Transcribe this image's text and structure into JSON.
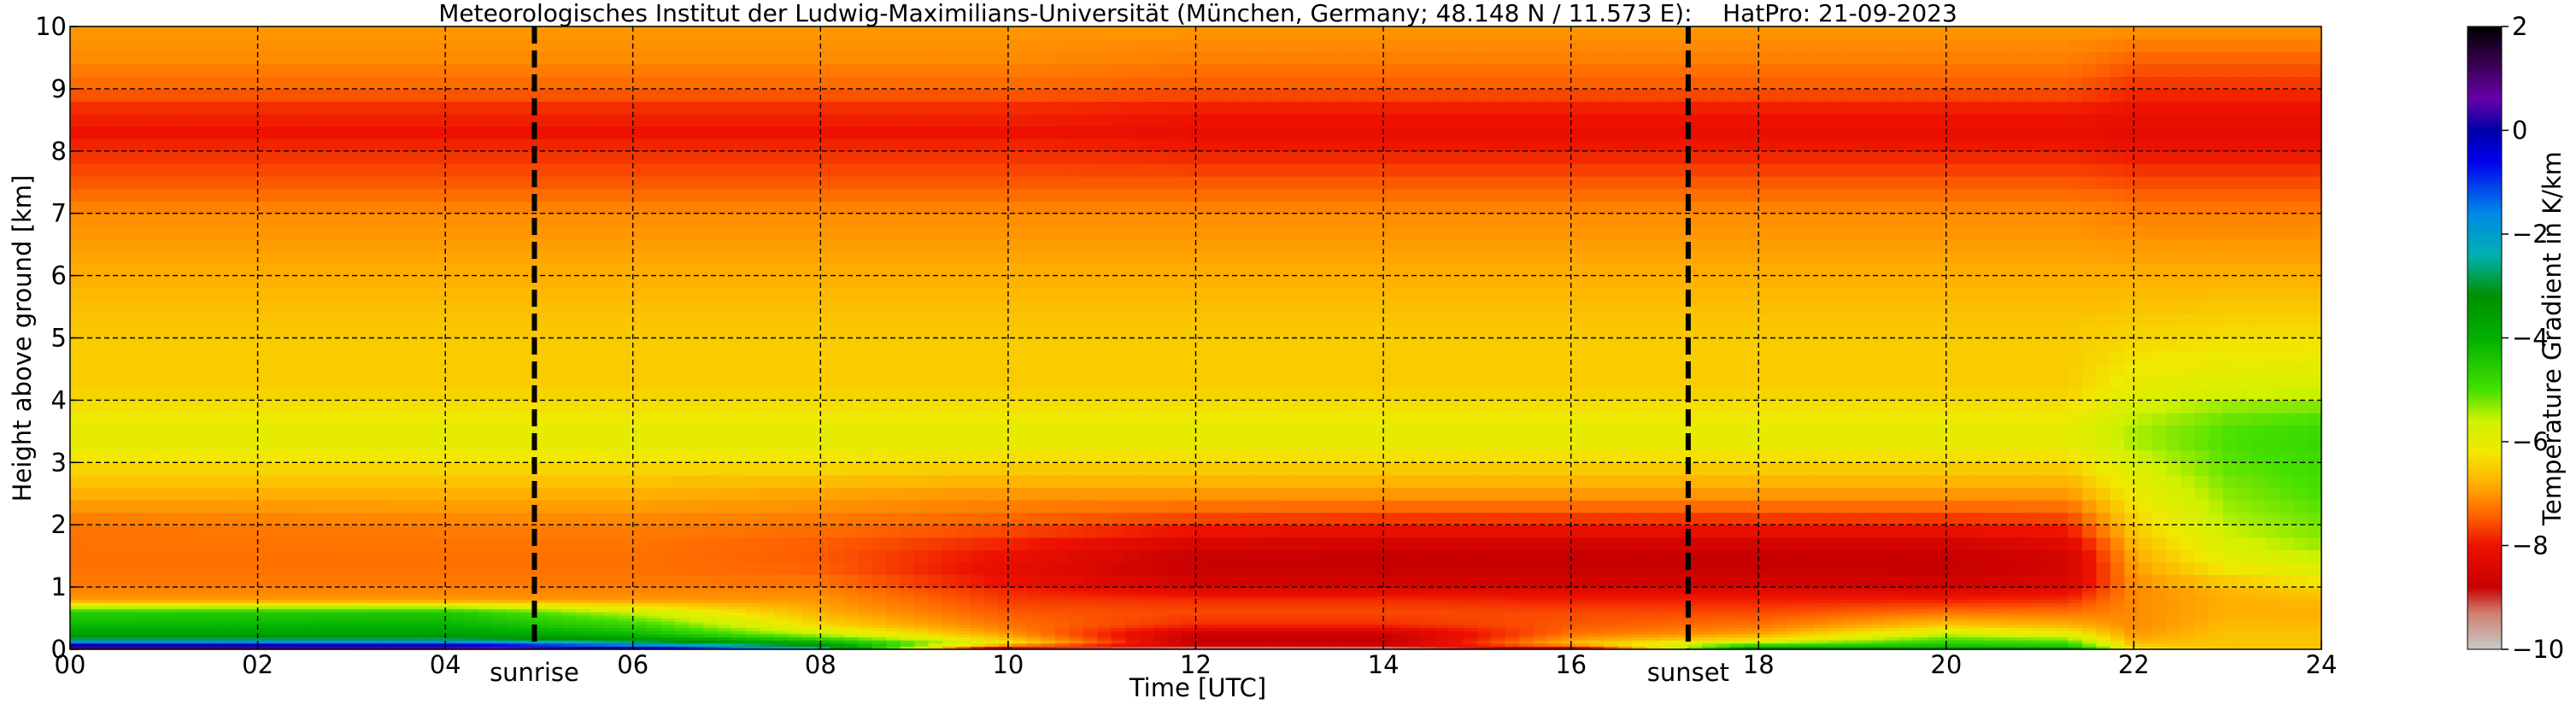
{
  "chart_data": {
    "type": "heatmap",
    "title": "Meteorologisches Institut der Ludwig-Maximilians-Universität (München, Germany; 48.148 N / 11.573 E):    HatPro: 21-09-2023",
    "xlabel": "Time [UTC]",
    "ylabel": "Height above ground [km]",
    "xlim": [
      0,
      24
    ],
    "ylim": [
      0,
      10
    ],
    "x_ticks": [
      0,
      2,
      4,
      6,
      8,
      10,
      12,
      14,
      16,
      18,
      20,
      22,
      24
    ],
    "x_tick_labels": [
      "00",
      "02",
      "04",
      "06",
      "08",
      "10",
      "12",
      "14",
      "16",
      "18",
      "20",
      "22",
      "24"
    ],
    "y_ticks": [
      0,
      1,
      2,
      3,
      4,
      5,
      6,
      7,
      8,
      9,
      10
    ],
    "y_tick_labels": [
      "0",
      "1",
      "2",
      "3",
      "4",
      "5",
      "6",
      "7",
      "8",
      "9",
      "10"
    ],
    "grid": true,
    "markers": [
      {
        "label": "sunrise",
        "x": 4.95
      },
      {
        "label": "sunset",
        "x": 17.25
      }
    ],
    "colorbar": {
      "label": "Temperature Gradient in K/km",
      "range": [
        -10,
        2
      ],
      "ticks": [
        2,
        0,
        -2,
        -4,
        -6,
        -8,
        -10
      ],
      "tick_labels": [
        "2",
        "0",
        "−2",
        "−4",
        "−6",
        "−8",
        "−10"
      ],
      "stops": [
        {
          "value": -10,
          "color": "#c8c8c8"
        },
        {
          "value": -9.3,
          "color": "#d08070"
        },
        {
          "value": -8.8,
          "color": "#c80000"
        },
        {
          "value": -8.0,
          "color": "#ee1100"
        },
        {
          "value": -7.4,
          "color": "#ff6600"
        },
        {
          "value": -6.8,
          "color": "#ffb000"
        },
        {
          "value": -6.2,
          "color": "#f2e800"
        },
        {
          "value": -5.6,
          "color": "#d0f200"
        },
        {
          "value": -5.0,
          "color": "#44e000"
        },
        {
          "value": -4.0,
          "color": "#00b000"
        },
        {
          "value": -3.2,
          "color": "#009000"
        },
        {
          "value": -2.4,
          "color": "#00b0b0"
        },
        {
          "value": -1.6,
          "color": "#0088e8"
        },
        {
          "value": -0.6,
          "color": "#0000ee"
        },
        {
          "value": 0.0,
          "color": "#0000a8"
        },
        {
          "value": 0.6,
          "color": "#6600aa"
        },
        {
          "value": 1.3,
          "color": "#380050"
        },
        {
          "value": 2.0,
          "color": "#000000"
        }
      ]
    },
    "field": {
      "profile_heights_km": [
        0,
        0.05,
        0.1,
        0.15,
        0.25,
        0.4,
        0.6,
        0.8,
        1.0,
        1.2,
        1.6,
        2.0,
        2.5,
        3.0,
        3.4,
        3.8,
        4.2,
        5.0,
        6.0,
        7.0,
        7.5,
        8.0,
        8.3,
        8.7,
        9.0,
        9.5,
        10.0
      ],
      "profiles": [
        {
          "hour": 0,
          "values": [
            1.8,
            0.5,
            -0.8,
            -2.6,
            -3.6,
            -4.2,
            -4.6,
            -7.0,
            -7.2,
            -7.3,
            -7.3,
            -7.3,
            -6.8,
            -6.3,
            -5.9,
            -6.2,
            -6.5,
            -6.5,
            -6.8,
            -7.1,
            -7.5,
            -7.8,
            -8.0,
            -7.8,
            -7.4,
            -7.1,
            -7.0
          ]
        },
        {
          "hour": 4,
          "values": [
            1.6,
            0.3,
            -0.9,
            -2.6,
            -3.6,
            -4.1,
            -4.5,
            -7.0,
            -7.2,
            -7.3,
            -7.3,
            -7.2,
            -6.8,
            -6.3,
            -5.9,
            -6.2,
            -6.5,
            -6.5,
            -6.8,
            -7.1,
            -7.5,
            -7.8,
            -8.0,
            -7.8,
            -7.4,
            -7.1,
            -7.0
          ]
        },
        {
          "hour": 6,
          "values": [
            0.5,
            -1.0,
            -2.2,
            -3.3,
            -4.2,
            -4.8,
            -5.6,
            -7.0,
            -7.2,
            -7.3,
            -7.3,
            -7.2,
            -6.8,
            -6.3,
            -5.9,
            -6.2,
            -6.5,
            -6.5,
            -6.8,
            -7.1,
            -7.5,
            -7.8,
            -8.0,
            -7.8,
            -7.4,
            -7.1,
            -7.0
          ]
        },
        {
          "hour": 8,
          "values": [
            -2.0,
            -3.0,
            -3.8,
            -4.5,
            -5.6,
            -6.4,
            -6.8,
            -7.0,
            -7.2,
            -7.4,
            -7.5,
            -7.3,
            -6.9,
            -6.3,
            -5.9,
            -6.2,
            -6.5,
            -6.5,
            -6.8,
            -7.1,
            -7.5,
            -7.8,
            -8.0,
            -7.8,
            -7.4,
            -7.1,
            -7.0
          ]
        },
        {
          "hour": 10,
          "values": [
            -9.8,
            -8.0,
            -6.0,
            -6.5,
            -7.0,
            -7.3,
            -7.5,
            -7.7,
            -7.9,
            -8.2,
            -8.0,
            -7.5,
            -7.0,
            -6.4,
            -5.9,
            -6.2,
            -6.5,
            -6.5,
            -6.8,
            -7.1,
            -7.5,
            -7.8,
            -8.0,
            -7.8,
            -7.4,
            -7.1,
            -7.0
          ]
        },
        {
          "hour": 12,
          "values": [
            -9.9,
            -8.6,
            -8.8,
            -8.8,
            -8.7,
            -7.8,
            -7.6,
            -7.8,
            -8.4,
            -8.8,
            -8.7,
            -7.8,
            -7.0,
            -6.4,
            -5.9,
            -6.2,
            -6.5,
            -6.5,
            -6.8,
            -7.1,
            -7.5,
            -7.9,
            -8.1,
            -7.9,
            -7.5,
            -7.2,
            -7.0
          ]
        },
        {
          "hour": 14,
          "values": [
            -9.9,
            -8.6,
            -8.8,
            -8.8,
            -8.7,
            -7.8,
            -7.6,
            -7.8,
            -8.4,
            -8.8,
            -8.8,
            -7.9,
            -7.0,
            -6.4,
            -5.9,
            -6.2,
            -6.5,
            -6.5,
            -6.8,
            -7.1,
            -7.5,
            -7.9,
            -8.1,
            -7.9,
            -7.5,
            -7.2,
            -7.0
          ]
        },
        {
          "hour": 16,
          "values": [
            -9.5,
            -7.6,
            -6.6,
            -6.9,
            -7.3,
            -7.5,
            -7.6,
            -7.9,
            -8.4,
            -8.8,
            -8.8,
            -7.9,
            -7.0,
            -6.4,
            -5.9,
            -6.2,
            -6.5,
            -6.5,
            -6.8,
            -7.1,
            -7.5,
            -7.9,
            -8.1,
            -7.9,
            -7.5,
            -7.2,
            -7.0
          ]
        },
        {
          "hour": 18,
          "values": [
            -3.0,
            -4.2,
            -5.2,
            -6.2,
            -6.9,
            -7.3,
            -7.6,
            -7.9,
            -8.4,
            -8.8,
            -8.8,
            -7.9,
            -7.0,
            -6.4,
            -5.9,
            -6.2,
            -6.5,
            -6.5,
            -6.8,
            -7.1,
            -7.5,
            -7.9,
            -8.1,
            -7.9,
            -7.5,
            -7.2,
            -7.0
          ]
        },
        {
          "hour": 20,
          "values": [
            -3.2,
            -4.2,
            -4.6,
            -4.9,
            -5.6,
            -6.6,
            -7.3,
            -7.9,
            -8.5,
            -8.8,
            -8.8,
            -7.9,
            -7.0,
            -6.4,
            -5.9,
            -6.2,
            -6.5,
            -6.5,
            -6.8,
            -7.1,
            -7.5,
            -7.9,
            -8.1,
            -7.9,
            -7.5,
            -7.2,
            -7.0
          ]
        },
        {
          "hour": 21.3,
          "values": [
            -3.4,
            -4.4,
            -4.8,
            -5.2,
            -6.0,
            -6.8,
            -7.3,
            -7.8,
            -8.3,
            -8.6,
            -8.5,
            -7.8,
            -7.0,
            -6.4,
            -5.9,
            -6.2,
            -6.5,
            -6.5,
            -6.8,
            -7.1,
            -7.5,
            -7.9,
            -8.1,
            -7.9,
            -7.5,
            -7.2,
            -7.0
          ]
        },
        {
          "hour": 22,
          "values": [
            -6.0,
            -6.5,
            -6.6,
            -6.8,
            -7.0,
            -7.1,
            -7.1,
            -7.1,
            -7.1,
            -7.0,
            -6.8,
            -6.5,
            -6.1,
            -5.7,
            -5.4,
            -5.6,
            -6.0,
            -6.4,
            -6.8,
            -7.2,
            -7.6,
            -8.0,
            -8.2,
            -8.0,
            -7.8,
            -7.4,
            -7.0
          ]
        },
        {
          "hour": 23,
          "values": [
            -6.5,
            -6.6,
            -6.6,
            -6.6,
            -6.6,
            -6.7,
            -6.8,
            -6.8,
            -6.7,
            -6.3,
            -5.8,
            -5.5,
            -5.3,
            -5.1,
            -5.0,
            -5.2,
            -5.8,
            -6.3,
            -6.8,
            -7.2,
            -7.6,
            -8.0,
            -8.2,
            -8.0,
            -7.8,
            -7.4,
            -7.0
          ]
        },
        {
          "hour": 24,
          "values": [
            -6.5,
            -6.6,
            -6.6,
            -6.6,
            -6.6,
            -6.7,
            -6.8,
            -6.7,
            -6.4,
            -6.0,
            -5.4,
            -5.2,
            -5.0,
            -4.9,
            -4.8,
            -5.1,
            -5.7,
            -6.3,
            -6.8,
            -7.2,
            -7.6,
            -8.0,
            -8.2,
            -8.0,
            -7.8,
            -7.4,
            -7.0
          ]
        }
      ]
    }
  }
}
